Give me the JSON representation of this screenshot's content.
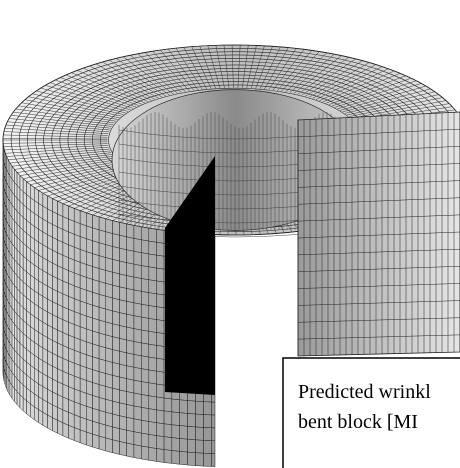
{
  "caption": {
    "lines": [
      "Predicted wrinkl",
      "bent block [MI"
    ]
  }
}
